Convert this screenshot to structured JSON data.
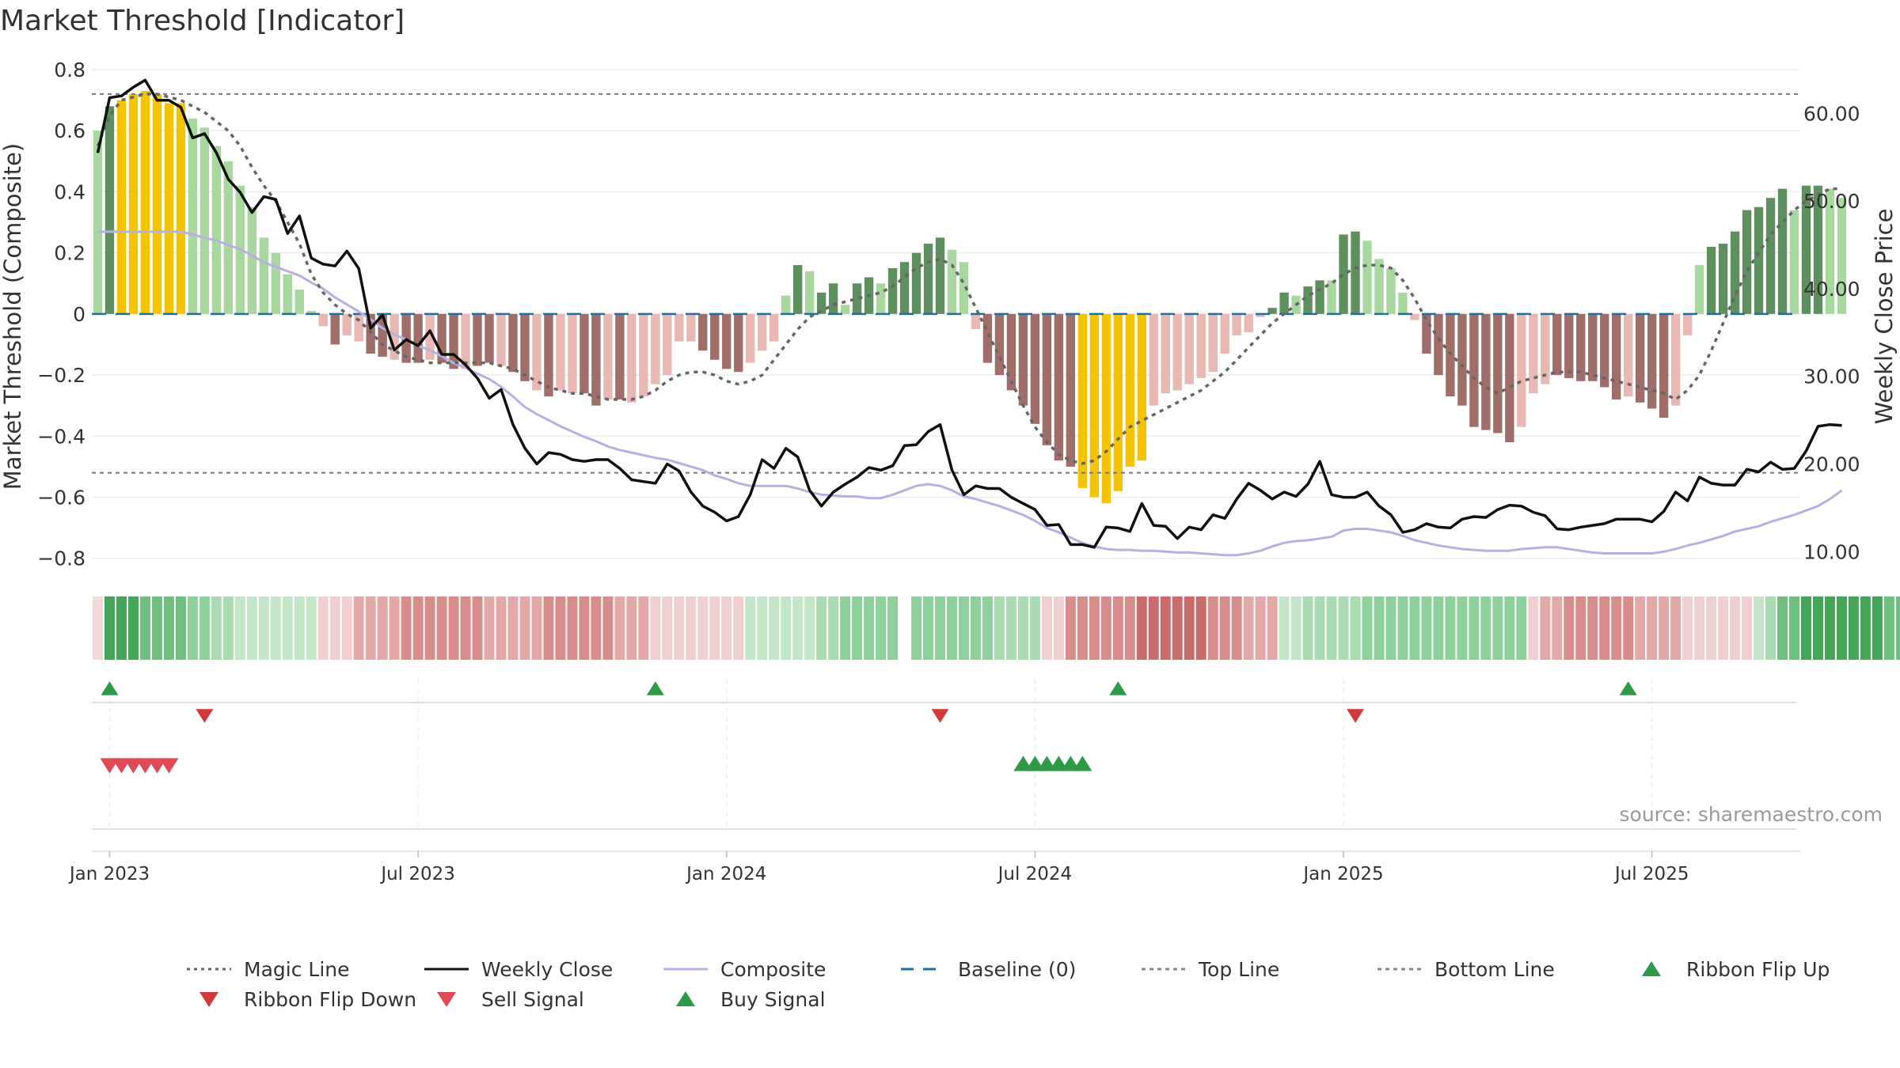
{
  "chart_data": {
    "type": "bar",
    "title": "Market Threshold [Indicator]",
    "ylabel": "Market Threshold (Composite)",
    "ylabel_right": "Weekly Close Price",
    "ylim": [
      -0.85,
      0.8
    ],
    "ylim_right": [
      7.5,
      65
    ],
    "y_ticks": [
      0.8,
      0.6,
      0.4,
      0.2,
      0,
      -0.2,
      -0.4,
      -0.6,
      -0.8
    ],
    "y_tick_labels": [
      "0.8",
      "0.6",
      "0.4",
      "0.2",
      "0",
      "−0.2",
      "−0.4",
      "−0.6",
      "−0.8"
    ],
    "y_right_ticks": [
      60,
      50,
      40,
      30,
      20,
      10
    ],
    "y_right_tick_labels": [
      "60.00",
      "50.00",
      "40.00",
      "30.00",
      "20.00",
      "10.00"
    ],
    "x_ticks": [
      1.5,
      27.5,
      53.5,
      79.5,
      105.5,
      131.5
    ],
    "x_tick_labels": [
      "Jan 2023",
      "Jul 2023",
      "Jan 2024",
      "Jul 2024",
      "Jan 2025",
      "Jul 2025"
    ],
    "weeks": 144,
    "top_line": 0.72,
    "bottom_line": -0.52,
    "histogram": [
      0.6,
      0.68,
      0.7,
      0.72,
      0.73,
      0.72,
      0.69,
      0.69,
      0.64,
      0.61,
      0.55,
      0.5,
      0.42,
      0.35,
      0.25,
      0.2,
      0.13,
      0.08,
      0.01,
      -0.04,
      -0.1,
      -0.07,
      -0.09,
      -0.13,
      -0.14,
      -0.15,
      -0.16,
      -0.16,
      -0.15,
      -0.16,
      -0.18,
      -0.18,
      -0.17,
      -0.16,
      -0.17,
      -0.19,
      -0.22,
      -0.25,
      -0.27,
      -0.25,
      -0.26,
      -0.26,
      -0.3,
      -0.28,
      -0.28,
      -0.29,
      -0.27,
      -0.23,
      -0.2,
      -0.09,
      -0.09,
      -0.12,
      -0.15,
      -0.18,
      -0.19,
      -0.16,
      -0.12,
      -0.09,
      0.06,
      0.16,
      0.14,
      0.07,
      0.1,
      0.03,
      0.1,
      0.12,
      0.1,
      0.15,
      0.17,
      0.2,
      0.23,
      0.25,
      0.21,
      0.17,
      -0.05,
      -0.16,
      -0.2,
      -0.25,
      -0.3,
      -0.36,
      -0.43,
      -0.48,
      -0.5,
      -0.57,
      -0.6,
      -0.62,
      -0.58,
      -0.5,
      -0.48,
      -0.3,
      -0.26,
      -0.25,
      -0.23,
      -0.21,
      -0.19,
      -0.13,
      -0.07,
      -0.06,
      -0.01,
      0.02,
      0.07,
      0.06,
      0.09,
      0.11,
      0.11,
      0.26,
      0.27,
      0.24,
      0.18,
      0.15,
      0.07,
      -0.02,
      -0.13,
      -0.2,
      -0.27,
      -0.3,
      -0.37,
      -0.38,
      -0.39,
      -0.42,
      -0.37,
      -0.26,
      -0.23,
      -0.2,
      -0.21,
      -0.22,
      -0.22,
      -0.24,
      -0.28,
      -0.27,
      -0.29,
      -0.31,
      -0.34,
      -0.3,
      -0.07,
      0.16,
      0.22,
      0.23,
      0.27,
      0.34,
      0.35,
      0.38,
      0.41,
      0.34,
      0.42,
      0.42,
      0.41,
      0.38
    ],
    "histogram_colors": [
      "#a8d8a0",
      "#5e8f5e",
      "#f5c400",
      "#f5c400",
      "#f5c400",
      "#f5c400",
      "#f5c400",
      "#f5c400",
      "#a8d8a0",
      "#a8d8a0",
      "#a8d8a0",
      "#a8d8a0",
      "#a8d8a0",
      "#a8d8a0",
      "#a8d8a0",
      "#a8d8a0",
      "#a8d8a0",
      "#a8d8a0",
      "#a8d8a0",
      "#e8b8b4",
      "#a06e6a",
      "#e8b8b4",
      "#e8b8b4",
      "#a06e6a",
      "#a06e6a",
      "#e8b8b4",
      "#a06e6a",
      "#a06e6a",
      "#e8b8b4",
      "#a06e6a",
      "#a06e6a",
      "#e8b8b4",
      "#a06e6a",
      "#a06e6a",
      "#e8b8b4",
      "#a06e6a",
      "#a06e6a",
      "#e8b8b4",
      "#a06e6a",
      "#e8b8b4",
      "#e8b8b4",
      "#a06e6a",
      "#a06e6a",
      "#e8b8b4",
      "#a06e6a",
      "#e8b8b4",
      "#e8b8b4",
      "#e8b8b4",
      "#e8b8b4",
      "#e8b8b4",
      "#e8b8b4",
      "#a06e6a",
      "#a06e6a",
      "#a06e6a",
      "#a06e6a",
      "#e8b8b4",
      "#e8b8b4",
      "#e8b8b4",
      "#a8d8a0",
      "#5e8f5e",
      "#a8d8a0",
      "#5e8f5e",
      "#5e8f5e",
      "#a8d8a0",
      "#5e8f5e",
      "#5e8f5e",
      "#a8d8a0",
      "#5e8f5e",
      "#5e8f5e",
      "#5e8f5e",
      "#5e8f5e",
      "#5e8f5e",
      "#a8d8a0",
      "#a8d8a0",
      "#e8b8b4",
      "#a06e6a",
      "#a06e6a",
      "#a06e6a",
      "#a06e6a",
      "#a06e6a",
      "#a06e6a",
      "#a06e6a",
      "#a06e6a",
      "#f5c400",
      "#f5c400",
      "#f5c400",
      "#f5c400",
      "#f5c400",
      "#f5c400",
      "#e8b8b4",
      "#e8b8b4",
      "#e8b8b4",
      "#e8b8b4",
      "#e8b8b4",
      "#e8b8b4",
      "#e8b8b4",
      "#e8b8b4",
      "#e8b8b4",
      "#e8b8b4",
      "#5e8f5e",
      "#5e8f5e",
      "#a8d8a0",
      "#5e8f5e",
      "#5e8f5e",
      "#a8d8a0",
      "#5e8f5e",
      "#5e8f5e",
      "#a8d8a0",
      "#a8d8a0",
      "#a8d8a0",
      "#a8d8a0",
      "#e8b8b4",
      "#a06e6a",
      "#a06e6a",
      "#a06e6a",
      "#a06e6a",
      "#a06e6a",
      "#a06e6a",
      "#a06e6a",
      "#a06e6a",
      "#e8b8b4",
      "#e8b8b4",
      "#e8b8b4",
      "#a06e6a",
      "#a06e6a",
      "#a06e6a",
      "#a06e6a",
      "#a06e6a",
      "#a06e6a",
      "#e8b8b4",
      "#a06e6a",
      "#a06e6a",
      "#a06e6a",
      "#e8b8b4",
      "#e8b8b4",
      "#a8d8a0",
      "#5e8f5e",
      "#5e8f5e",
      "#5e8f5e",
      "#5e8f5e",
      "#5e8f5e",
      "#5e8f5e",
      "#5e8f5e",
      "#a8d8a0",
      "#5e8f5e",
      "#5e8f5e",
      "#a8d8a0",
      "#a8d8a0"
    ],
    "ribbon_colors": [
      "#f2d8d8",
      "#44a757",
      "#44a757",
      "#44a757",
      "#6fbf7f",
      "#6fbf7f",
      "#6fbf7f",
      "#6fbf7f",
      "#8fd19c",
      "#8fd19c",
      "#a9dcb2",
      "#a9dcb2",
      "#c3e6c9",
      "#c3e6c9",
      "#c3e6c9",
      "#c3e6c9",
      "#c3e6c9",
      "#c3e6c9",
      "#c3e6c9",
      "#efcfcf",
      "#efcfcf",
      "#efcfcf",
      "#e3a9a9",
      "#e3a9a9",
      "#e3a9a9",
      "#e3a9a9",
      "#d98c8c",
      "#d98c8c",
      "#d98c8c",
      "#d98c8c",
      "#d98c8c",
      "#d98c8c",
      "#d98c8c",
      "#e3a9a9",
      "#e3a9a9",
      "#e3a9a9",
      "#e3a9a9",
      "#e3a9a9",
      "#d98c8c",
      "#d98c8c",
      "#d98c8c",
      "#d98c8c",
      "#d98c8c",
      "#d98c8c",
      "#e3a9a9",
      "#e3a9a9",
      "#e3a9a9",
      "#efcfcf",
      "#efcfcf",
      "#efcfcf",
      "#efcfcf",
      "#efcfcf",
      "#efcfcf",
      "#efcfcf",
      "#efcfcf",
      "#c3e6c9",
      "#c3e6c9",
      "#c3e6c9",
      "#c3e6c9",
      "#c3e6c9",
      "#c3e6c9",
      "#a9dcb2",
      "#a9dcb2",
      "#8fd19c",
      "#8fd19c",
      "#8fd19c",
      "#8fd19c",
      "#8fd19c",
      null,
      "#8fd19c",
      "#8fd19c",
      "#8fd19c",
      "#8fd19c",
      "#8fd19c",
      "#8fd19c",
      "#8fd19c",
      "#a9dcb2",
      "#a9dcb2",
      "#a9dcb2",
      "#a9dcb2",
      "#efcfcf",
      "#efcfcf",
      "#d98c8c",
      "#d98c8c",
      "#d98c8c",
      "#d98c8c",
      "#d98c8c",
      "#d98c8c",
      "#c96c6c",
      "#c96c6c",
      "#c96c6c",
      "#c96c6c",
      "#c96c6c",
      "#c96c6c",
      "#d98c8c",
      "#d98c8c",
      "#d98c8c",
      "#e3a9a9",
      "#e3a9a9",
      "#e3a9a9",
      "#c3e6c9",
      "#c3e6c9",
      "#a9dcb2",
      "#a9dcb2",
      "#a9dcb2",
      "#a9dcb2",
      "#a9dcb2",
      "#8fd19c",
      "#8fd19c",
      "#8fd19c",
      "#8fd19c",
      "#8fd19c",
      "#8fd19c",
      "#8fd19c",
      "#8fd19c",
      "#8fd19c",
      "#8fd19c",
      "#8fd19c",
      "#8fd19c",
      "#8fd19c",
      "#8fd19c",
      "#efcfcf",
      "#e3a9a9",
      "#e3a9a9",
      "#d98c8c",
      "#d98c8c",
      "#d98c8c",
      "#d98c8c",
      "#d98c8c",
      "#d98c8c",
      "#e3a9a9",
      "#e3a9a9",
      "#e3a9a9",
      "#e3a9a9",
      "#efcfcf",
      "#efcfcf",
      "#efcfcf",
      "#efcfcf",
      "#efcfcf",
      "#efcfcf",
      "#c3e6c9",
      "#a9dcb2",
      "#6fbf7f",
      "#6fbf7f",
      "#44a757",
      "#44a757",
      "#44a757",
      "#44a757",
      "#44a757",
      "#44a757",
      "#44a757",
      "#6fbf7f",
      "#6fbf7f",
      "#8fd19c",
      "#8fd19c"
    ],
    "series": [
      {
        "name": "Weekly Close",
        "axis": "right",
        "color": "#111111",
        "values": [
          55.5,
          61.8,
          62,
          63,
          63.8,
          61.5,
          61.5,
          60.7,
          57.2,
          57.7,
          55.5,
          52.5,
          51,
          48.7,
          50.5,
          50.2,
          46.3,
          48.3,
          43.5,
          42.8,
          42.6,
          44.3,
          42.3,
          35.5,
          37,
          33,
          34.2,
          33.5,
          35.2,
          32.5,
          32.5,
          31.3,
          29.8,
          27.5,
          28.5,
          24.5,
          21.8,
          20,
          21.3,
          21.1,
          20.5,
          20.3,
          20.5,
          20.5,
          19.5,
          18.2,
          18,
          17.8,
          20,
          19.2,
          16.8,
          15.2,
          14.5,
          13.5,
          14,
          16.5,
          20.5,
          19.5,
          21.8,
          20.8,
          17,
          15.2,
          16.8,
          17.7,
          18.5,
          19.6,
          19.3,
          19.8,
          22.1,
          22.2,
          23.7,
          24.5,
          19.3,
          16.5,
          17.5,
          17.2,
          17.2,
          16.2,
          15.5,
          14.8,
          13,
          13.1,
          10.8,
          10.8,
          10.5,
          12.8,
          12.7,
          12.3,
          15.5,
          13,
          12.9,
          11.5,
          12.8,
          12.5,
          14.2,
          13.8,
          16,
          17.8,
          17,
          16,
          16.8,
          16.3,
          17.7,
          20.3,
          16.5,
          16.2,
          16.2,
          16.8,
          15.2,
          14.2,
          12.2,
          12.5,
          13.2,
          12.8,
          12.7,
          13.7,
          14,
          13.9,
          14.8,
          15.3,
          15.2,
          14.5,
          14.1,
          12.6,
          12.5,
          12.8,
          13,
          13.2,
          13.7,
          13.7,
          13.7,
          13.4,
          14.6,
          16.8,
          15.8,
          18.5,
          17.8,
          17.6,
          17.6,
          19.4,
          19.1,
          20.2,
          19.4,
          19.5,
          21.5,
          24.3,
          24.5,
          24.4
        ]
      },
      {
        "name": "Magic Line",
        "axis": "left",
        "color": "#666666",
        "values": [
          0.55,
          0.65,
          0.7,
          0.71,
          0.72,
          0.72,
          0.71,
          0.7,
          0.68,
          0.66,
          0.63,
          0.6,
          0.55,
          0.48,
          0.42,
          0.37,
          0.3,
          0.23,
          0.13,
          0.07,
          0.03,
          0.0,
          -0.02,
          -0.06,
          -0.1,
          -0.12,
          -0.14,
          -0.15,
          -0.16,
          -0.16,
          -0.16,
          -0.16,
          -0.16,
          -0.16,
          -0.17,
          -0.18,
          -0.2,
          -0.22,
          -0.24,
          -0.25,
          -0.26,
          -0.26,
          -0.27,
          -0.28,
          -0.28,
          -0.28,
          -0.27,
          -0.25,
          -0.22,
          -0.2,
          -0.19,
          -0.19,
          -0.2,
          -0.22,
          -0.23,
          -0.22,
          -0.2,
          -0.15,
          -0.1,
          -0.05,
          -0.01,
          0.01,
          0.03,
          0.04,
          0.05,
          0.06,
          0.07,
          0.09,
          0.12,
          0.15,
          0.17,
          0.18,
          0.16,
          0.1,
          0.02,
          -0.06,
          -0.14,
          -0.22,
          -0.3,
          -0.37,
          -0.42,
          -0.46,
          -0.48,
          -0.49,
          -0.48,
          -0.45,
          -0.41,
          -0.37,
          -0.35,
          -0.33,
          -0.31,
          -0.29,
          -0.27,
          -0.25,
          -0.22,
          -0.19,
          -0.15,
          -0.11,
          -0.07,
          -0.03,
          0.0,
          0.03,
          0.06,
          0.08,
          0.1,
          0.13,
          0.15,
          0.16,
          0.16,
          0.15,
          0.11,
          0.05,
          -0.02,
          -0.08,
          -0.13,
          -0.17,
          -0.21,
          -0.24,
          -0.26,
          -0.24,
          -0.22,
          -0.21,
          -0.2,
          -0.19,
          -0.19,
          -0.19,
          -0.2,
          -0.21,
          -0.22,
          -0.23,
          -0.24,
          -0.25,
          -0.26,
          -0.28,
          -0.25,
          -0.2,
          -0.12,
          -0.03,
          0.06,
          0.14,
          0.2,
          0.26,
          0.3,
          0.34,
          0.37,
          0.39,
          0.41,
          0.41
        ]
      },
      {
        "name": "Composite",
        "axis": "right",
        "color": "#b8b0e0",
        "values": [
          46.5,
          46.5,
          46.5,
          46.5,
          46.5,
          46.5,
          46.5,
          46.5,
          46.2,
          45.8,
          45.5,
          45,
          44.5,
          43.8,
          43,
          42.5,
          42,
          41.5,
          40.7,
          40,
          39,
          38.2,
          37.4,
          36.5,
          35.5,
          34.8,
          34.2,
          33.5,
          33,
          32.3,
          31.5,
          31,
          30.3,
          29.7,
          28.8,
          27.7,
          26.5,
          25.7,
          25,
          24.3,
          23.7,
          23.1,
          22.6,
          22,
          21.6,
          21.3,
          21,
          20.7,
          20.5,
          20.1,
          19.7,
          19.3,
          18.7,
          18.3,
          17.8,
          17.5,
          17.5,
          17.5,
          17.5,
          17.2,
          16.8,
          16.5,
          16.4,
          16.3,
          16.3,
          16.1,
          16.1,
          16.5,
          17,
          17.5,
          17.7,
          17.5,
          17,
          16.3,
          16,
          15.6,
          15.2,
          14.7,
          14.2,
          13.5,
          12.7,
          12.2,
          11.6,
          11,
          10.6,
          10.3,
          10.2,
          10.2,
          10.1,
          10.1,
          10,
          9.9,
          9.9,
          9.8,
          9.7,
          9.6,
          9.6,
          9.8,
          10.1,
          10.6,
          11,
          11.2,
          11.3,
          11.5,
          11.7,
          12.4,
          12.6,
          12.6,
          12.4,
          12.2,
          11.8,
          11.3,
          11,
          10.7,
          10.5,
          10.3,
          10.2,
          10.1,
          10.1,
          10.1,
          10.3,
          10.4,
          10.5,
          10.5,
          10.3,
          10.1,
          9.9,
          9.8,
          9.8,
          9.8,
          9.8,
          9.8,
          10,
          10.3,
          10.7,
          11,
          11.4,
          11.8,
          12.3,
          12.6,
          12.9,
          13.4,
          13.8,
          14.2,
          14.7,
          15.2,
          16,
          17
        ]
      }
    ],
    "flip_up": [
      1,
      47,
      86,
      129
    ],
    "flip_down": [
      9,
      71,
      106
    ],
    "sell_signals": [
      1.5,
      2.5,
      3.5,
      4.5,
      5.5,
      6.5
    ],
    "buy_signals": [
      78.5,
      79.5,
      80.5,
      81.5,
      82.5,
      83.5
    ],
    "annotation": "source: sharemaestro.com",
    "legend": [
      {
        "label": "Magic Line",
        "kind": "dotted",
        "color": "#666666"
      },
      {
        "label": "Weekly Close",
        "kind": "solid",
        "color": "#111111"
      },
      {
        "label": "Composite",
        "kind": "solid-light",
        "color": "#b8b0e0"
      },
      {
        "label": "Baseline (0)",
        "kind": "dashed",
        "color": "#1f6f9f"
      },
      {
        "label": "Top Line",
        "kind": "dashed-grey",
        "color": "#888888"
      },
      {
        "label": "Bottom Line",
        "kind": "dashed-grey",
        "color": "#888888"
      },
      {
        "label": "Ribbon Flip Up",
        "kind": "triangle-up",
        "color": "#2e9a48"
      },
      {
        "label": "Ribbon Flip Down",
        "kind": "triangle-down",
        "color": "#d13a3a"
      },
      {
        "label": "Sell Signal",
        "kind": "triangle-down",
        "color": "#e04a55"
      },
      {
        "label": "Buy Signal",
        "kind": "triangle-up",
        "color": "#2e9a48"
      }
    ],
    "legend_placement": "bottom"
  }
}
